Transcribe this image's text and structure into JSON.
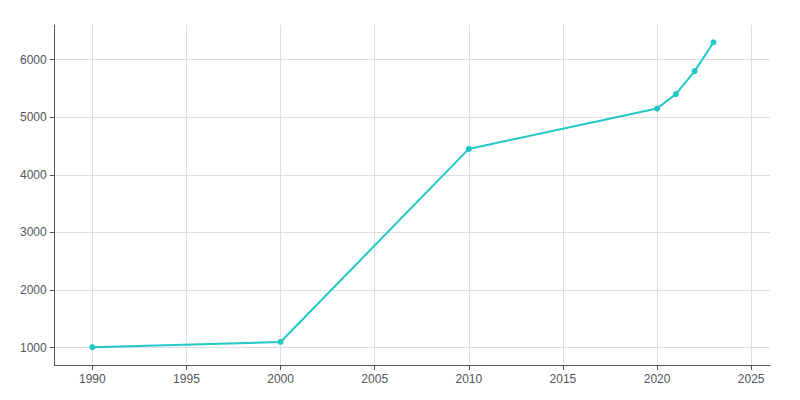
{
  "chart_data": {
    "type": "line",
    "x": [
      1990,
      2000,
      2010,
      2020,
      2021,
      2022,
      2023
    ],
    "values": [
      1010,
      1100,
      4450,
      5150,
      5400,
      5800,
      6300
    ],
    "color": "#22c8c8",
    "marker": "circle",
    "xlim": [
      1988,
      2026
    ],
    "ylim": [
      700,
      6600
    ],
    "xticks": [
      1990,
      1995,
      2000,
      2005,
      2010,
      2015,
      2020,
      2025
    ],
    "yticks": [
      1000,
      2000,
      3000,
      4000,
      5000,
      6000
    ],
    "grid": true
  }
}
